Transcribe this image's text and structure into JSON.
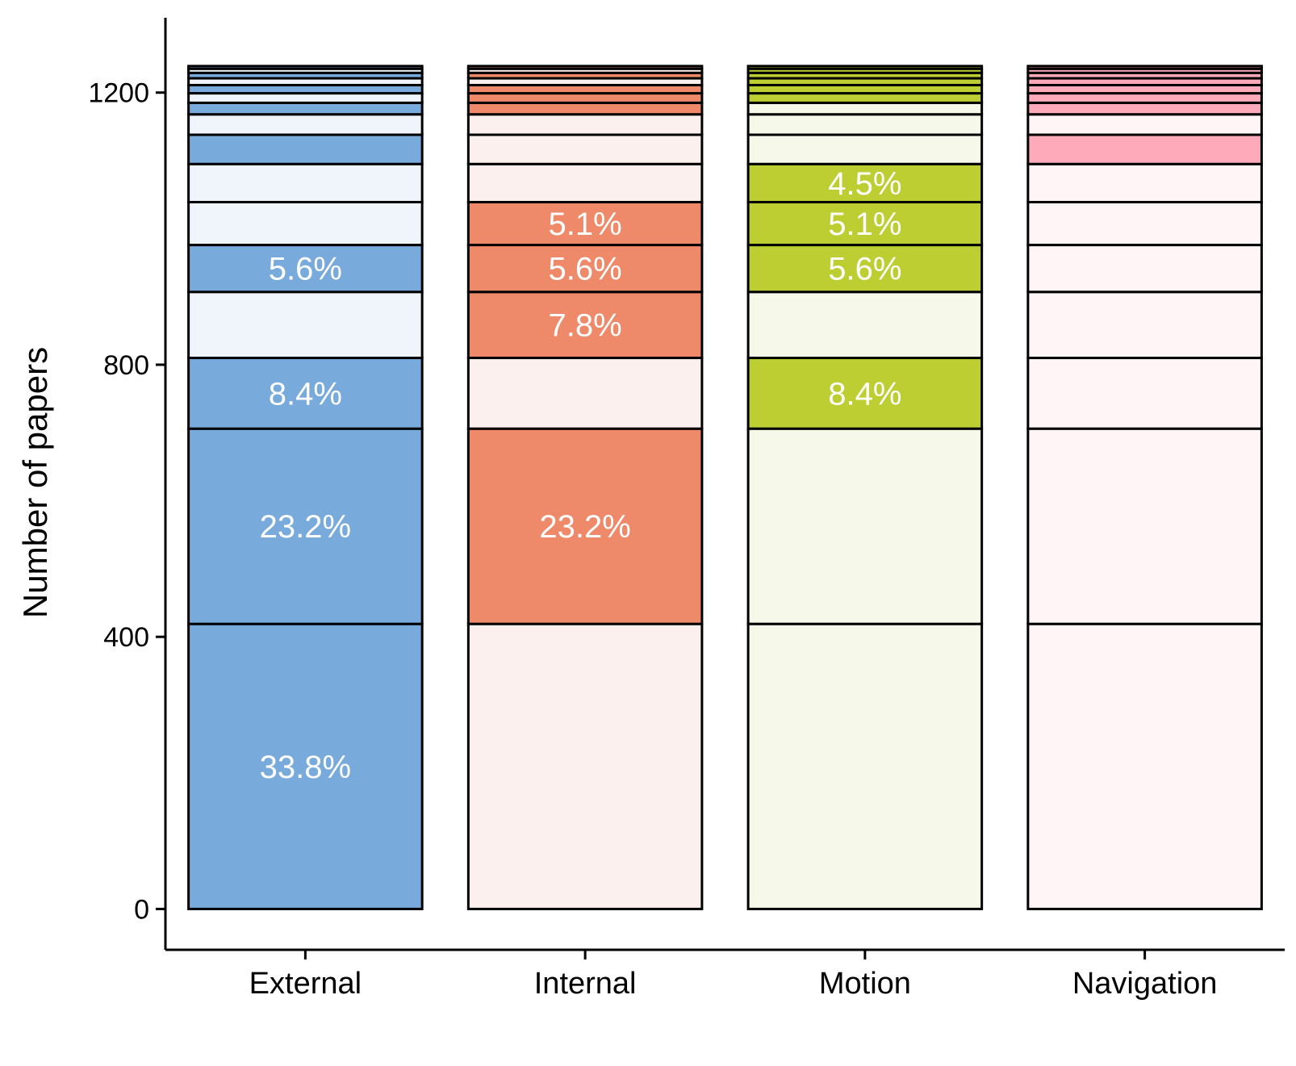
{
  "chart_data": {
    "type": "bar",
    "stacked": true,
    "ylabel": "Number of papers",
    "xlabel": "",
    "ylim": [
      -60,
      1310
    ],
    "yticks": [
      0,
      400,
      800,
      1200
    ],
    "yticklabels": [
      "0",
      "400",
      "800",
      "1200"
    ],
    "categories": [
      "External",
      "Internal",
      "Motion",
      "Navigation"
    ],
    "segments": [
      {
        "value": 419,
        "pct_label": "33.8%"
      },
      {
        "value": 287,
        "pct_label": "23.2%"
      },
      {
        "value": 104,
        "pct_label": "8.4%"
      },
      {
        "value": 97,
        "pct_label": "7.8%"
      },
      {
        "value": 69,
        "pct_label": "5.6%"
      },
      {
        "value": 63,
        "pct_label": "5.1%"
      },
      {
        "value": 56,
        "pct_label": "4.5%"
      },
      {
        "value": 43,
        "pct_label": ""
      },
      {
        "value": 30,
        "pct_label": ""
      },
      {
        "value": 17,
        "pct_label": ""
      },
      {
        "value": 14,
        "pct_label": ""
      },
      {
        "value": 12,
        "pct_label": ""
      },
      {
        "value": 10,
        "pct_label": ""
      },
      {
        "value": 8,
        "pct_label": ""
      },
      {
        "value": 6,
        "pct_label": ""
      },
      {
        "value": 4,
        "pct_label": ""
      }
    ],
    "series": [
      {
        "category": "External",
        "color": "#78AADC",
        "faded_color": "#F0F5FB",
        "highlighted": [
          true,
          true,
          true,
          false,
          true,
          false,
          false,
          true,
          false,
          true,
          false,
          true,
          false,
          true,
          false,
          true
        ]
      },
      {
        "category": "Internal",
        "color": "#EE8A6A",
        "faded_color": "#FCF0EE",
        "highlighted": [
          false,
          true,
          false,
          true,
          true,
          true,
          false,
          false,
          false,
          true,
          true,
          true,
          false,
          true,
          false,
          true
        ]
      },
      {
        "category": "Motion",
        "color": "#BDCE32",
        "faded_color": "#F6F8EA",
        "highlighted": [
          false,
          false,
          true,
          false,
          true,
          true,
          true,
          false,
          false,
          false,
          true,
          true,
          true,
          true,
          true,
          true
        ]
      },
      {
        "category": "Navigation",
        "color": "#FFAABA",
        "faded_color": "#FFF4F6",
        "highlighted": [
          false,
          false,
          false,
          false,
          false,
          false,
          false,
          true,
          false,
          true,
          true,
          true,
          true,
          true,
          true,
          true
        ]
      }
    ],
    "grid": false,
    "legend": "none"
  }
}
